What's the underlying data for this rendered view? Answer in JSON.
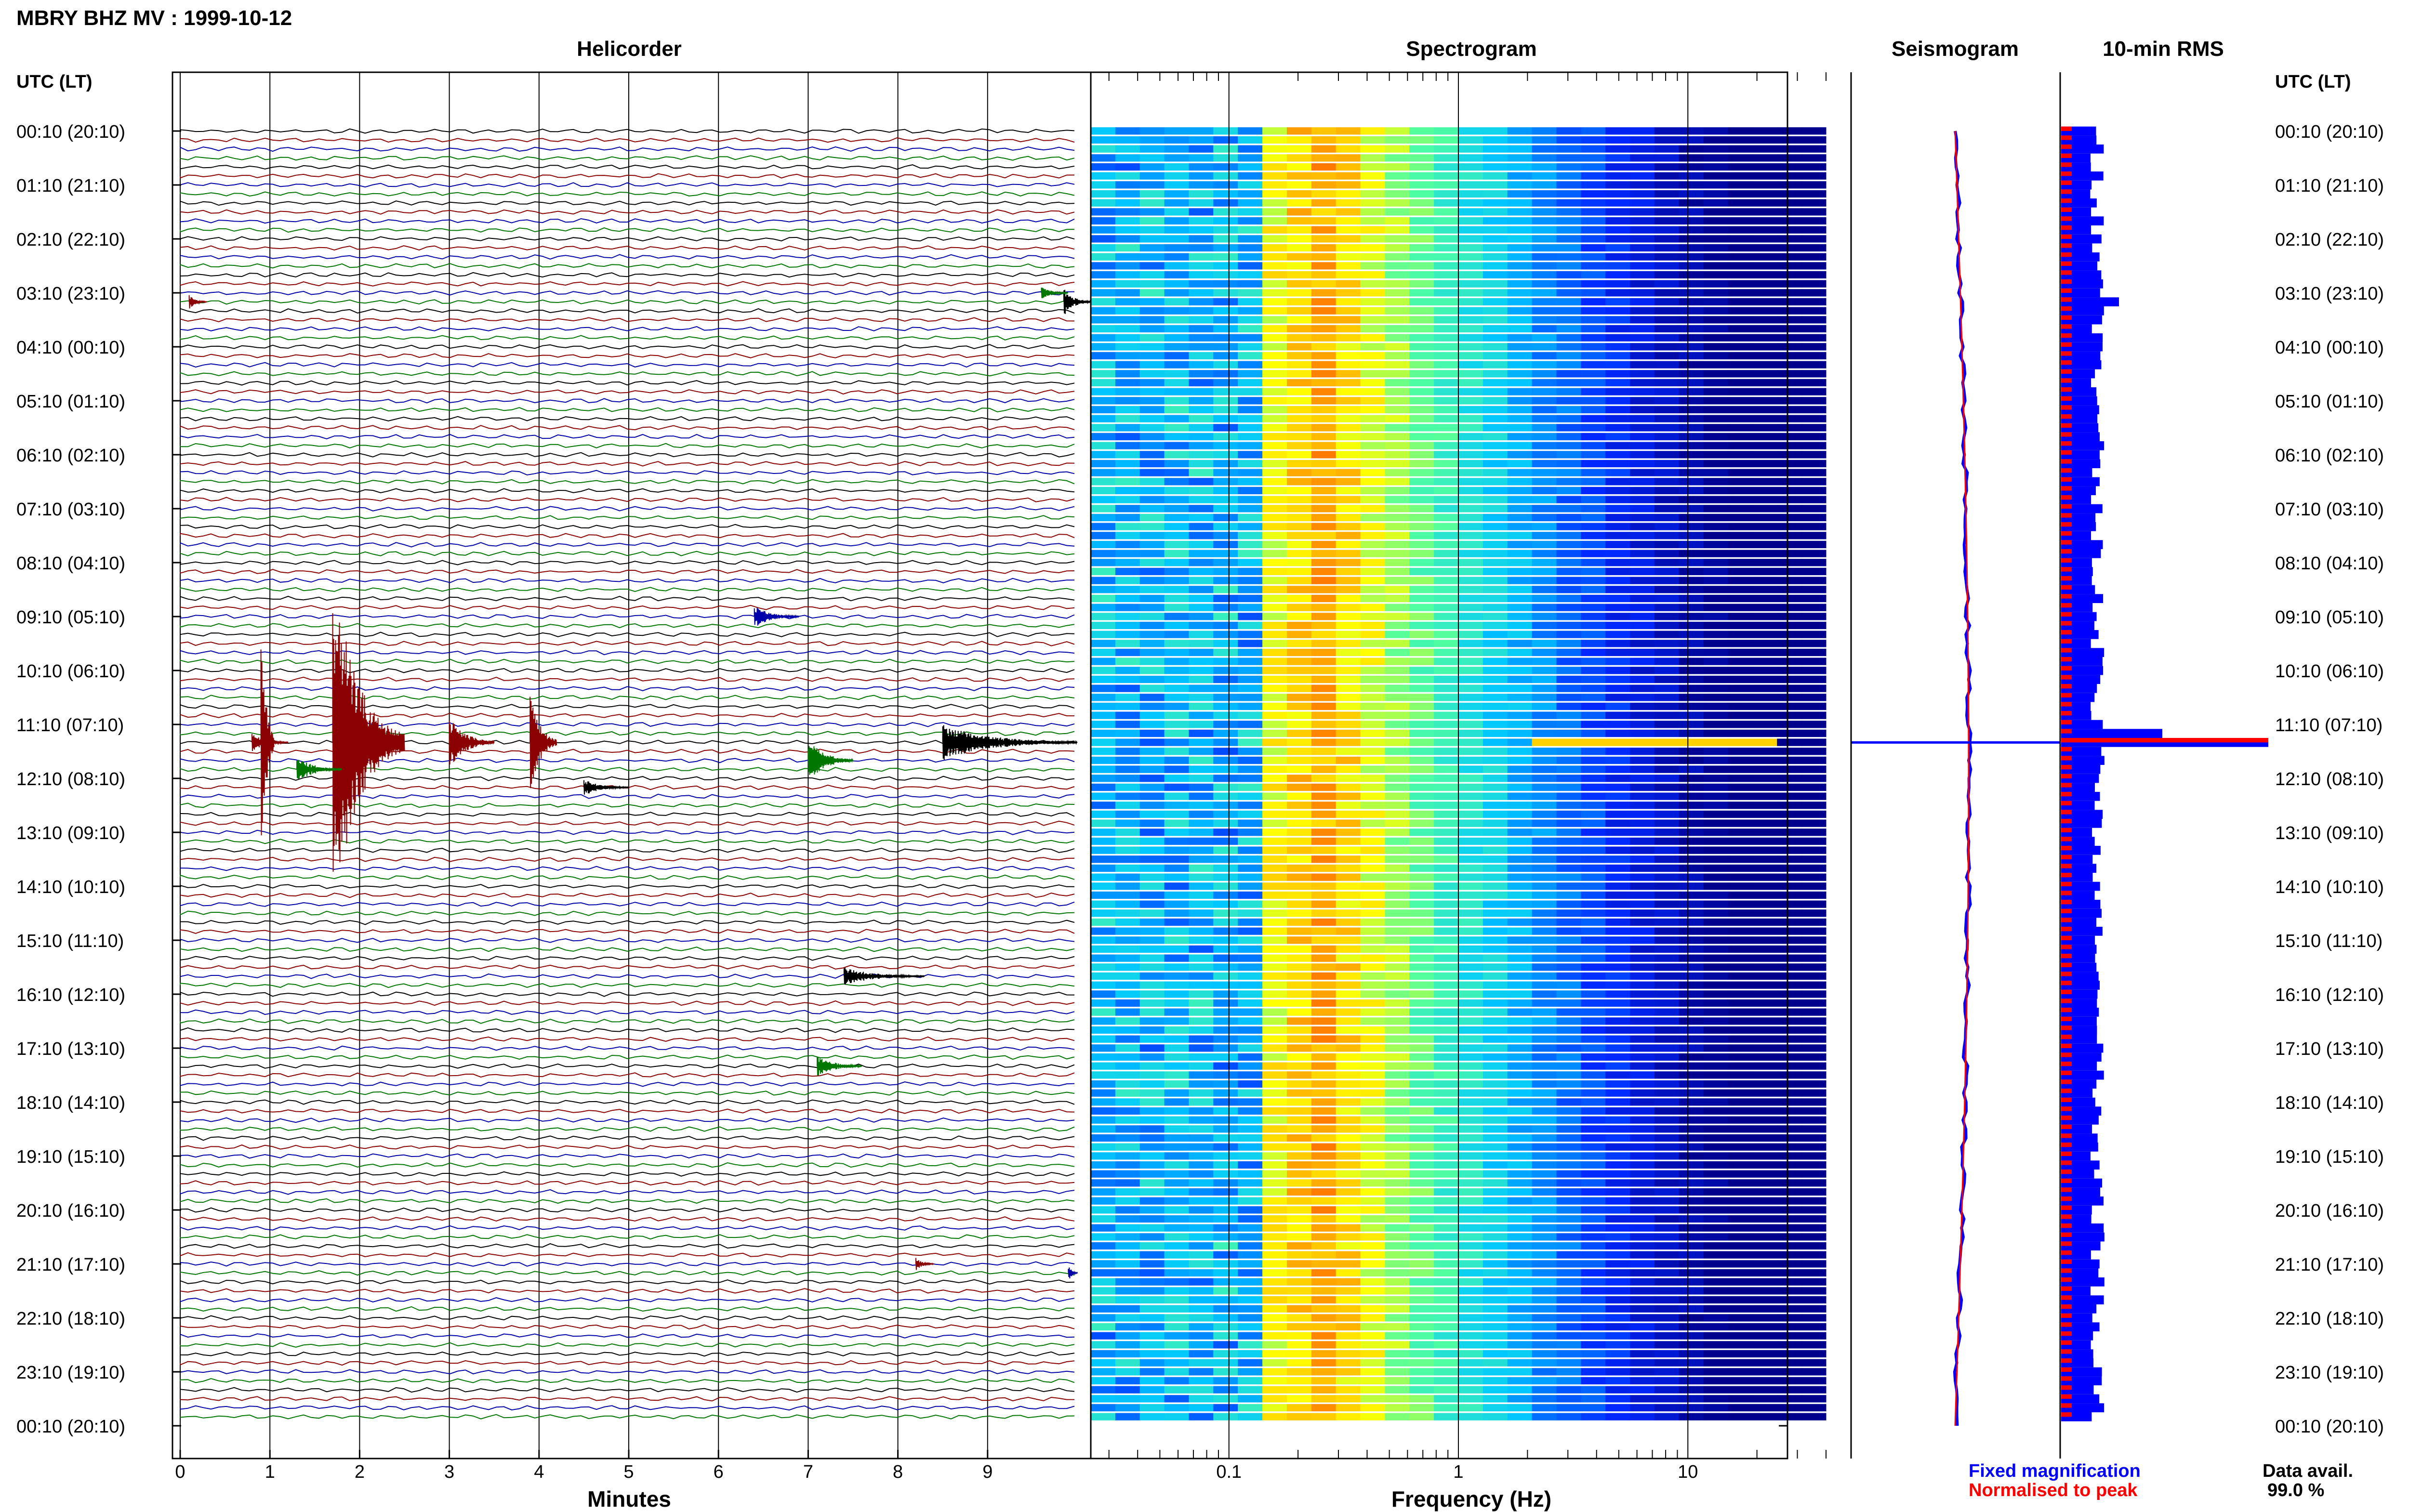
{
  "figure": {
    "title": "MBRY BHZ MV : 1999-10-12",
    "colors": {
      "red": "#8b0000",
      "green": "#007700",
      "blue": "#0000aa",
      "black": "#000000",
      "rms_blue": "#0000ff",
      "rms_red": "#ff0000"
    }
  },
  "chart_data": [
    {
      "type": "line",
      "title": "Helicorder",
      "xlabel": "Minutes",
      "ylabel_left": "UTC (LT)",
      "xticks": [
        "0",
        "1",
        "2",
        "3",
        "4",
        "5",
        "6",
        "7",
        "8",
        "9"
      ],
      "xlim": [
        0,
        10
      ],
      "row_labels_utc_lt": [
        "00:10 (20:10)",
        "01:10 (21:10)",
        "02:10 (22:10)",
        "03:10 (23:10)",
        "04:10 (00:10)",
        "05:10 (01:10)",
        "06:10 (02:10)",
        "07:10 (03:10)",
        "08:10 (04:10)",
        "09:10 (05:10)",
        "10:10 (06:10)",
        "11:10 (07:10)",
        "12:10 (08:10)",
        "13:10 (09:10)",
        "14:10 (10:10)",
        "15:10 (11:10)",
        "16:10 (12:10)",
        "17:10 (13:10)",
        "18:10 (14:10)",
        "19:10 (15:10)",
        "20:10 (16:10)",
        "21:10 (17:10)",
        "22:10 (18:10)",
        "23:10 (19:10)",
        "00:10 (20:10)"
      ],
      "trace_colors_cycle": [
        "black",
        "red",
        "blue",
        "green"
      ],
      "traces_per_hour": 6,
      "events": [
        {
          "trace": 19,
          "minute": 0.1,
          "amp": 0.3,
          "dur": 0.2,
          "color": "red"
        },
        {
          "trace": 19,
          "minute": 9.85,
          "amp": 0.6,
          "dur": 0.3,
          "color": "black"
        },
        {
          "trace": 18,
          "minute": 9.6,
          "amp": 0.3,
          "dur": 0.3,
          "color": "green"
        },
        {
          "trace": 54,
          "minute": 6.4,
          "amp": 0.5,
          "dur": 0.5,
          "color": "blue"
        },
        {
          "trace": 68,
          "minute": 0.8,
          "amp": 0.4,
          "dur": 0.4,
          "color": "red"
        },
        {
          "trace": 68,
          "minute": 0.9,
          "amp": 6.0,
          "dur": 0.15,
          "color": "red"
        },
        {
          "trace": 68,
          "minute": 1.7,
          "amp": 8.0,
          "dur": 0.8,
          "color": "red"
        },
        {
          "trace": 68,
          "minute": 3.0,
          "amp": 1.2,
          "dur": 0.5,
          "color": "red"
        },
        {
          "trace": 68,
          "minute": 3.9,
          "amp": 2.5,
          "dur": 0.3,
          "color": "red"
        },
        {
          "trace": 68,
          "minute": 8.5,
          "amp": 0.8,
          "dur": 1.5,
          "color": "black"
        },
        {
          "trace": 70,
          "minute": 7.0,
          "amp": 1.0,
          "dur": 0.5,
          "color": "green"
        },
        {
          "trace": 71,
          "minute": 1.3,
          "amp": 0.6,
          "dur": 0.5,
          "color": "green"
        },
        {
          "trace": 73,
          "minute": 4.5,
          "amp": 0.4,
          "dur": 0.5,
          "color": "black"
        },
        {
          "trace": 94,
          "minute": 7.4,
          "amp": 0.4,
          "dur": 0.9,
          "color": "black"
        },
        {
          "trace": 104,
          "minute": 7.1,
          "amp": 0.5,
          "dur": 0.5,
          "color": "green"
        },
        {
          "trace": 126,
          "minute": 8.2,
          "amp": 0.3,
          "dur": 0.2,
          "color": "red"
        },
        {
          "trace": 127,
          "minute": 9.9,
          "amp": 0.4,
          "dur": 0.1,
          "color": "blue"
        }
      ]
    },
    {
      "type": "heatmap",
      "title": "Spectrogram",
      "xlabel": "Frequency (Hz)",
      "xscale": "log",
      "xticks": [
        "0.1",
        "1",
        "10"
      ],
      "xlim": [
        0.025,
        40
      ]
    },
    {
      "type": "line",
      "title": "Seismogram",
      "series": [
        {
          "name": "Fixed magnification",
          "color": "#0000ff"
        },
        {
          "name": "Normalised to peak",
          "color": "#ff0000"
        }
      ]
    },
    {
      "type": "bar",
      "title": "10-min RMS",
      "ylabel_right": "UTC (LT)",
      "annotation_title": "Data avail.",
      "annotation_value": "99.0 %"
    }
  ]
}
